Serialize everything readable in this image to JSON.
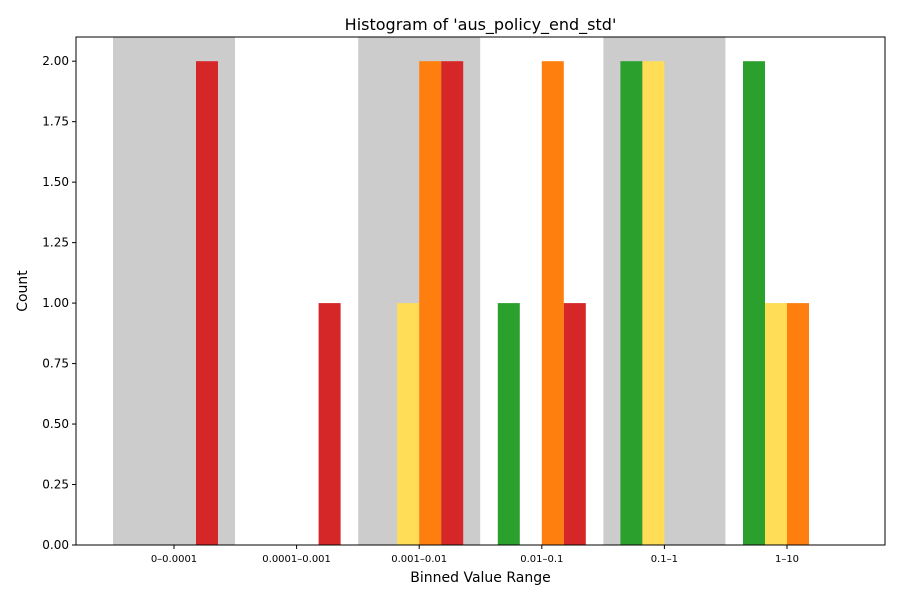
{
  "chart_data": {
    "type": "bar",
    "title": "Histogram of 'aus_policy_end_std'",
    "xlabel": "Binned Value Range",
    "ylabel": "Count",
    "categories": [
      "0–0.0001",
      "0.0001–0.001",
      "0.001–0.01",
      "0.01–0.1",
      "0.1–1",
      "1–10"
    ],
    "ylim": [
      0,
      2.1
    ],
    "yticks": [
      "0.00",
      "0.25",
      "0.50",
      "0.75",
      "1.00",
      "1.25",
      "1.50",
      "1.75",
      "2.00"
    ],
    "shaded_categories": [
      0,
      2,
      4
    ],
    "grid": false,
    "legend": "none",
    "series": [
      {
        "color": "#2ca02c",
        "values": [
          0,
          0,
          0,
          1,
          2,
          2
        ]
      },
      {
        "color": "#ffdd57",
        "values": [
          0,
          0,
          1,
          0,
          2,
          1
        ]
      },
      {
        "color": "#ff7f0e",
        "values": [
          0,
          0,
          2,
          2,
          0,
          1
        ]
      },
      {
        "color": "#d62728",
        "values": [
          2,
          1,
          2,
          1,
          0,
          0
        ]
      }
    ],
    "colors": {
      "band": "#cccccc",
      "axis": "#000000"
    }
  }
}
